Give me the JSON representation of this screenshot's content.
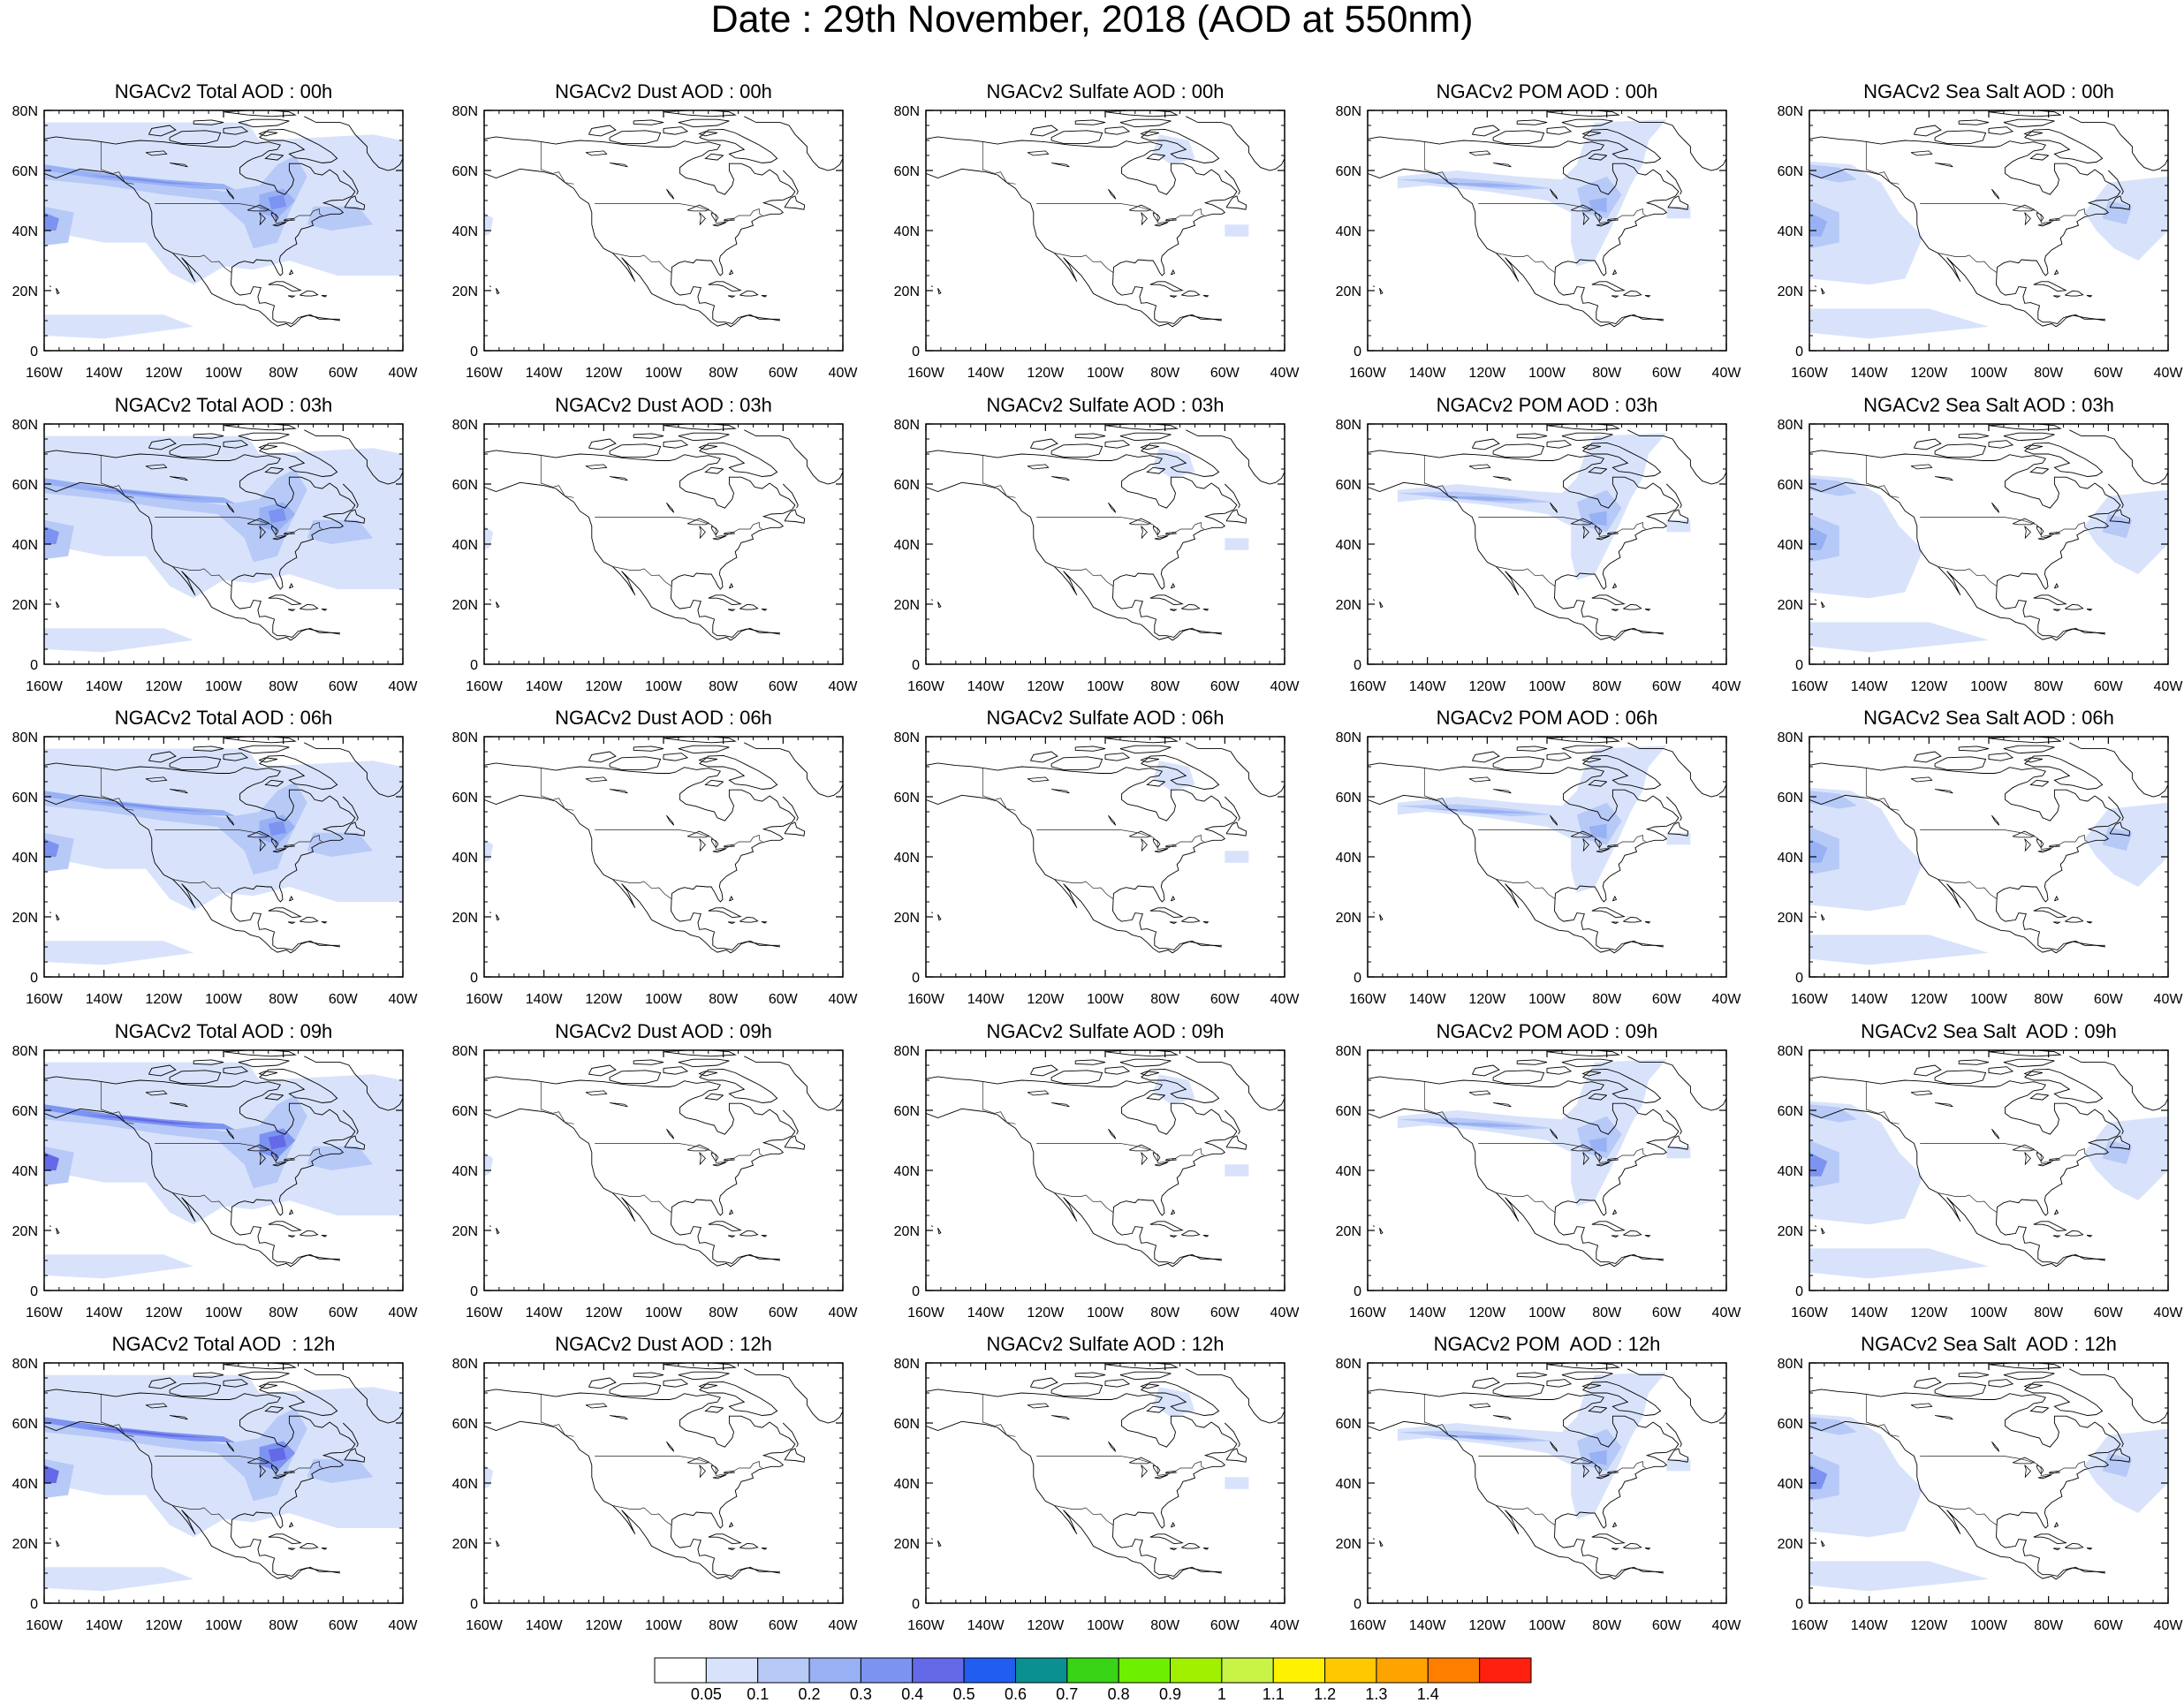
{
  "title": "Date : 29th November, 2018 (AOD at 550nm)",
  "map_extent": {
    "lon_min": -160,
    "lon_max": -40,
    "lat_min": 0,
    "lat_max": 80
  },
  "lon_tick_labels": [
    "160W",
    "140W",
    "120W",
    "100W",
    "80W",
    "60W",
    "40W"
  ],
  "lat_tick_labels": [
    "0",
    "20N",
    "40N",
    "60N",
    "80N"
  ],
  "rows": [
    {
      "panels": [
        {
          "title": "NGACv2 Total AOD : 00h",
          "species": "total"
        },
        {
          "title": "NGACv2 Dust AOD : 00h",
          "species": "dust"
        },
        {
          "title": "NGACv2 Sulfate AOD : 00h",
          "species": "sulfate"
        },
        {
          "title": "NGACv2 POM AOD : 00h",
          "species": "pom"
        },
        {
          "title": "NGACv2 Sea Salt AOD : 00h",
          "species": "seasalt"
        }
      ]
    },
    {
      "panels": [
        {
          "title": "NGACv2 Total AOD : 03h",
          "species": "total"
        },
        {
          "title": "NGACv2 Dust AOD : 03h",
          "species": "dust"
        },
        {
          "title": "NGACv2 Sulfate AOD : 03h",
          "species": "sulfate"
        },
        {
          "title": "NGACv2 POM AOD : 03h",
          "species": "pom"
        },
        {
          "title": "NGACv2 Sea Salt AOD : 03h",
          "species": "seasalt"
        }
      ]
    },
    {
      "panels": [
        {
          "title": "NGACv2 Total AOD : 06h",
          "species": "total"
        },
        {
          "title": "NGACv2 Dust AOD : 06h",
          "species": "dust"
        },
        {
          "title": "NGACv2 Sulfate AOD : 06h",
          "species": "sulfate"
        },
        {
          "title": "NGACv2 POM AOD : 06h",
          "species": "pom"
        },
        {
          "title": "NGACv2 Sea Salt AOD : 06h",
          "species": "seasalt"
        }
      ]
    },
    {
      "panels": [
        {
          "title": "NGACv2 Total AOD : 09h",
          "species": "total"
        },
        {
          "title": "NGACv2 Dust AOD : 09h",
          "species": "dust"
        },
        {
          "title": "NGACv2 Sulfate AOD : 09h",
          "species": "sulfate"
        },
        {
          "title": "NGACv2 POM AOD : 09h",
          "species": "pom"
        },
        {
          "title": "NGACv2 Sea Salt  AOD : 09h",
          "species": "seasalt"
        }
      ]
    },
    {
      "panels": [
        {
          "title": "NGACv2 Total AOD  : 12h",
          "species": "total"
        },
        {
          "title": "NGACv2 Dust AOD : 12h",
          "species": "dust"
        },
        {
          "title": "NGACv2 Sulfate AOD : 12h",
          "species": "sulfate"
        },
        {
          "title": "NGACv2 POM  AOD : 12h",
          "species": "pom"
        },
        {
          "title": "NGACv2 Sea Salt  AOD : 12h",
          "species": "seasalt"
        }
      ]
    }
  ],
  "colorbar": {
    "levels": [
      "0.05",
      "0.1",
      "0.2",
      "0.3",
      "0.4",
      "0.5",
      "0.6",
      "0.7",
      "0.8",
      "0.9",
      "1",
      "1.1",
      "1.2",
      "1.3",
      "1.4"
    ],
    "colors": [
      "#ffffff",
      "#d8e3fb",
      "#b7c9f7",
      "#98b1f4",
      "#7d93f1",
      "#6469e8",
      "#1f5ef0",
      "#0a9090",
      "#38d416",
      "#6cf000",
      "#a0f000",
      "#c8f446",
      "#fff200",
      "#ffc800",
      "#ffa300",
      "#ff7e00",
      "#ff2010"
    ]
  }
}
